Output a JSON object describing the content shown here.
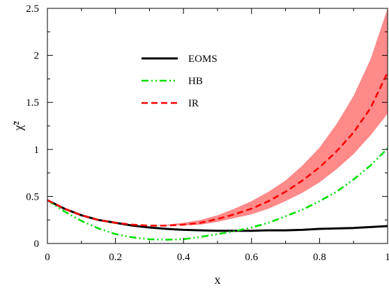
{
  "chart_data": {
    "type": "line",
    "title": "",
    "xlabel": "x",
    "ylabel": "χ̃²",
    "xlim": [
      0,
      1
    ],
    "ylim": [
      0,
      2.5
    ],
    "x_ticks": [
      0,
      0.2,
      0.4,
      0.6,
      0.8,
      1
    ],
    "x_tick_labels": [
      "0",
      "0.2",
      "0.4",
      "0.6",
      "0.8",
      "1"
    ],
    "y_ticks": [
      0,
      0.5,
      1,
      1.5,
      2,
      2.5
    ],
    "y_tick_labels": [
      "0",
      "0.5",
      "1",
      "1.5",
      "2",
      "2.5"
    ],
    "grid": false,
    "legend_position": "upper-middle",
    "series": [
      {
        "name": "EOMS",
        "color": "#000000",
        "style": "solid",
        "x": [
          0,
          0.05,
          0.1,
          0.15,
          0.2,
          0.25,
          0.3,
          0.35,
          0.4,
          0.45,
          0.5,
          0.55,
          0.6,
          0.65,
          0.7,
          0.75,
          0.8,
          0.85,
          0.9,
          0.95,
          1
        ],
        "y": [
          0.46,
          0.37,
          0.3,
          0.25,
          0.22,
          0.19,
          0.17,
          0.155,
          0.145,
          0.14,
          0.135,
          0.135,
          0.135,
          0.14,
          0.14,
          0.145,
          0.155,
          0.16,
          0.165,
          0.175,
          0.185
        ]
      },
      {
        "name": "HB",
        "color": "#00dd00",
        "style": "dash-dot-dot",
        "x": [
          0,
          0.05,
          0.1,
          0.15,
          0.2,
          0.25,
          0.3,
          0.35,
          0.4,
          0.45,
          0.5,
          0.55,
          0.6,
          0.65,
          0.7,
          0.75,
          0.8,
          0.85,
          0.9,
          0.95,
          1
        ],
        "y": [
          0.46,
          0.34,
          0.24,
          0.16,
          0.1,
          0.065,
          0.045,
          0.04,
          0.045,
          0.07,
          0.1,
          0.13,
          0.17,
          0.22,
          0.29,
          0.36,
          0.45,
          0.55,
          0.68,
          0.83,
          1.01
        ]
      },
      {
        "name": "IR",
        "color": "#ff0000",
        "style": "dashed",
        "x": [
          0,
          0.05,
          0.1,
          0.15,
          0.2,
          0.25,
          0.3,
          0.35,
          0.4,
          0.45,
          0.5,
          0.55,
          0.6,
          0.65,
          0.7,
          0.75,
          0.8,
          0.85,
          0.9,
          0.95,
          1
        ],
        "y": [
          0.46,
          0.37,
          0.3,
          0.25,
          0.22,
          0.2,
          0.19,
          0.19,
          0.2,
          0.22,
          0.26,
          0.31,
          0.37,
          0.45,
          0.55,
          0.67,
          0.81,
          0.98,
          1.18,
          1.44,
          1.82
        ],
        "band": {
          "color": "#ff8a8a",
          "lower": [
            0.46,
            0.37,
            0.3,
            0.25,
            0.22,
            0.2,
            0.19,
            0.19,
            0.19,
            0.2,
            0.23,
            0.27,
            0.31,
            0.37,
            0.45,
            0.54,
            0.65,
            0.79,
            0.95,
            1.15,
            1.38
          ],
          "upper": [
            0.46,
            0.37,
            0.3,
            0.25,
            0.22,
            0.2,
            0.19,
            0.2,
            0.22,
            0.25,
            0.3,
            0.37,
            0.45,
            0.55,
            0.67,
            0.83,
            1.02,
            1.27,
            1.57,
            1.96,
            2.5
          ]
        }
      }
    ]
  }
}
